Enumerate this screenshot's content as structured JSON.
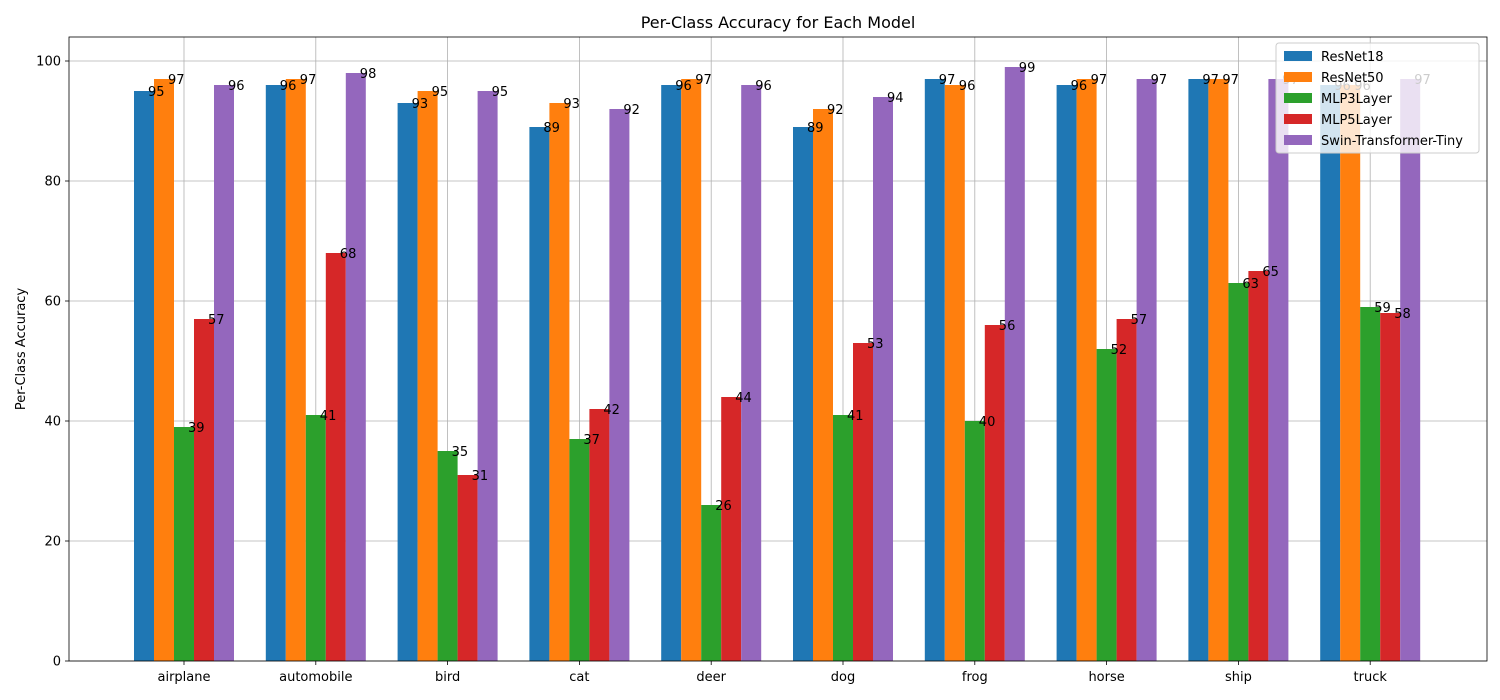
{
  "chart_data": {
    "type": "bar",
    "title": "Per-Class Accuracy for Each Model",
    "xlabel": "",
    "ylabel": "Per-Class Accuracy",
    "ylim": [
      0,
      104
    ],
    "yticks": [
      0,
      20,
      40,
      60,
      80,
      100
    ],
    "grid": true,
    "legend_position": "top-right",
    "categories": [
      "airplane",
      "automobile",
      "bird",
      "cat",
      "deer",
      "dog",
      "frog",
      "horse",
      "ship",
      "truck"
    ],
    "series": [
      {
        "name": "ResNet18",
        "color": "#1f77b4",
        "values": [
          95,
          96,
          93,
          89,
          96,
          89,
          97,
          96,
          97,
          96
        ]
      },
      {
        "name": "ResNet50",
        "color": "#ff7f0e",
        "values": [
          97,
          97,
          95,
          93,
          97,
          92,
          96,
          97,
          97,
          96
        ]
      },
      {
        "name": "MLP3Layer",
        "color": "#2ca02c",
        "values": [
          39,
          41,
          35,
          37,
          26,
          41,
          40,
          52,
          63,
          59
        ]
      },
      {
        "name": "MLP5Layer",
        "color": "#d62728",
        "values": [
          57,
          68,
          31,
          42,
          44,
          53,
          56,
          57,
          65,
          58
        ]
      },
      {
        "name": "Swin-Transformer-Tiny",
        "color": "#9467bd",
        "values": [
          96,
          98,
          95,
          92,
          96,
          94,
          99,
          97,
          97,
          97
        ]
      }
    ]
  }
}
